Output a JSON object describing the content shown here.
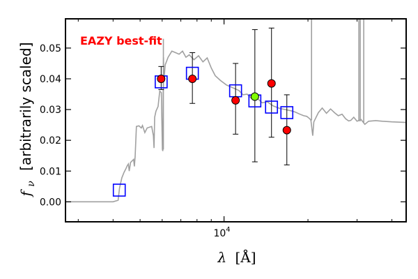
{
  "chart_data": {
    "type": "scatter",
    "title": "",
    "annotation": "EAZY best-fit",
    "annotation_color": "#ff0000",
    "xlabel": "λ [Å]",
    "ylabel": "f_ν [arbitrarily scaled]",
    "ylabel_symbol": "f",
    "ylabel_subscript": "ν",
    "ylabel_text": "[arbitrarily scaled]",
    "xlabel_symbol": "λ",
    "xlabel_text": "[Å]",
    "x_scale": "log",
    "xlim": [
      2700,
      45000
    ],
    "ylim": [
      -0.0065,
      0.0595
    ],
    "y_ticks": [
      0.0,
      0.01,
      0.02,
      0.03,
      0.04,
      0.05
    ],
    "y_tick_labels": [
      "0.00",
      "0.01",
      "0.02",
      "0.03",
      "0.04",
      "0.05"
    ],
    "x_major_ticks": [
      10000
    ],
    "x_major_tick_label_base": "10",
    "x_major_tick_label_exp": "4",
    "x_minor_ticks": [
      3000,
      4000,
      5000,
      6000,
      7000,
      8000,
      9000,
      20000,
      30000,
      40000
    ],
    "grid": false,
    "colors": {
      "template": "#a0a0a0",
      "model_box": "#0000ff",
      "observed": "#ff0000",
      "highlight": "#80ff00",
      "marker_edge": "#000000"
    },
    "series": [
      {
        "kind": "template",
        "points": [
          [
            2700,
            0.0
          ],
          [
            3300,
            0.0
          ],
          [
            4000,
            0.0
          ],
          [
            4170,
            0.0005
          ],
          [
            4220,
            0.0045
          ],
          [
            4300,
            0.0078
          ],
          [
            4380,
            0.0096
          ],
          [
            4450,
            0.0108
          ],
          [
            4500,
            0.0118
          ],
          [
            4540,
            0.0123
          ],
          [
            4570,
            0.01
          ],
          [
            4620,
            0.0128
          ],
          [
            4680,
            0.0133
          ],
          [
            4740,
            0.0138
          ],
          [
            4770,
            0.0115
          ],
          [
            4800,
            0.0148
          ],
          [
            4850,
            0.0245
          ],
          [
            4950,
            0.0247
          ],
          [
            5050,
            0.024
          ],
          [
            5100,
            0.0248
          ],
          [
            5200,
            0.0225
          ],
          [
            5300,
            0.024
          ],
          [
            5500,
            0.0245
          ],
          [
            5580,
            0.0215
          ],
          [
            5610,
            0.0175
          ],
          [
            5640,
            0.0275
          ],
          [
            5700,
            0.0295
          ],
          [
            5800,
            0.031
          ],
          [
            5880,
            0.036
          ],
          [
            5960,
            0.0355
          ],
          [
            6010,
            0.017
          ],
          [
            6030,
            0.0165
          ],
          [
            6050,
            0.034
          ],
          [
            6065,
            0.047
          ],
          [
            6080,
            0.039
          ],
          [
            6150,
            0.0445
          ],
          [
            6300,
            0.047
          ],
          [
            6500,
            0.049
          ],
          [
            6700,
            0.0485
          ],
          [
            6900,
            0.048
          ],
          [
            7100,
            0.049
          ],
          [
            7300,
            0.047
          ],
          [
            7500,
            0.0478
          ],
          [
            7800,
            0.0462
          ],
          [
            8100,
            0.0475
          ],
          [
            8400,
            0.0455
          ],
          [
            8700,
            0.0468
          ],
          [
            9000,
            0.0435
          ],
          [
            9300,
            0.041
          ],
          [
            9700,
            0.0395
          ],
          [
            10200,
            0.038
          ],
          [
            10800,
            0.037
          ],
          [
            11300,
            0.0362
          ],
          [
            11700,
            0.0348
          ],
          [
            12100,
            0.035
          ],
          [
            12600,
            0.0335
          ],
          [
            13100,
            0.0338
          ],
          [
            13700,
            0.0322
          ],
          [
            14300,
            0.0325
          ],
          [
            15000,
            0.0312
          ],
          [
            15800,
            0.0304
          ],
          [
            16600,
            0.03
          ],
          [
            17400,
            0.0296
          ],
          [
            18000,
            0.0292
          ],
          [
            18700,
            0.0285
          ],
          [
            19300,
            0.028
          ],
          [
            19800,
            0.0278
          ],
          [
            20300,
            0.027
          ],
          [
            20500,
            0.0265
          ],
          [
            20800,
            0.0215
          ],
          [
            21000,
            0.026
          ],
          [
            21800,
            0.029
          ],
          [
            22500,
            0.0305
          ],
          [
            23300,
            0.0288
          ],
          [
            24100,
            0.0302
          ],
          [
            24900,
            0.029
          ],
          [
            25700,
            0.028
          ],
          [
            26500,
            0.0285
          ],
          [
            27300,
            0.027
          ],
          [
            28000,
            0.0263
          ],
          [
            28500,
            0.0265
          ],
          [
            29200,
            0.0275
          ],
          [
            30000,
            0.0262
          ],
          [
            31000,
            0.0268
          ],
          [
            32000,
            0.0252
          ],
          [
            33000,
            0.0262
          ],
          [
            35000,
            0.0264
          ],
          [
            37000,
            0.0262
          ],
          [
            40000,
            0.026
          ],
          [
            45000,
            0.0258
          ]
        ],
        "emission_lines": [
          [
            6060,
            0.017,
            0.053
          ],
          [
            20600,
            0.0265,
            0.06
          ],
          [
            30450,
            0.0262,
            0.06
          ],
          [
            30800,
            0.0262,
            0.06
          ],
          [
            31700,
            0.0258,
            0.06
          ]
        ]
      },
      {
        "kind": "model_fluxes",
        "marker": "square",
        "points": [
          [
            4210,
            0.0038
          ],
          [
            5950,
            0.039
          ],
          [
            7700,
            0.0418
          ],
          [
            11000,
            0.0361
          ],
          [
            12900,
            0.0328
          ],
          [
            14800,
            0.0308
          ],
          [
            16800,
            0.029
          ]
        ]
      },
      {
        "kind": "observed",
        "marker": "circle",
        "points": [
          {
            "x": 5950,
            "y": 0.04,
            "err_lo": 0.0365,
            "err_hi": 0.044,
            "color": "observed"
          },
          {
            "x": 7700,
            "y": 0.04,
            "err_lo": 0.032,
            "err_hi": 0.0485,
            "color": "observed"
          },
          {
            "x": 11000,
            "y": 0.033,
            "err_lo": 0.022,
            "err_hi": 0.045,
            "color": "observed"
          },
          {
            "x": 12900,
            "y": 0.0342,
            "err_lo": 0.013,
            "err_hi": 0.056,
            "color": "highlight"
          },
          {
            "x": 14800,
            "y": 0.0385,
            "err_lo": 0.021,
            "err_hi": 0.0565,
            "color": "observed"
          },
          {
            "x": 16800,
            "y": 0.0233,
            "err_lo": 0.012,
            "err_hi": 0.0348,
            "color": "observed"
          }
        ]
      }
    ]
  }
}
